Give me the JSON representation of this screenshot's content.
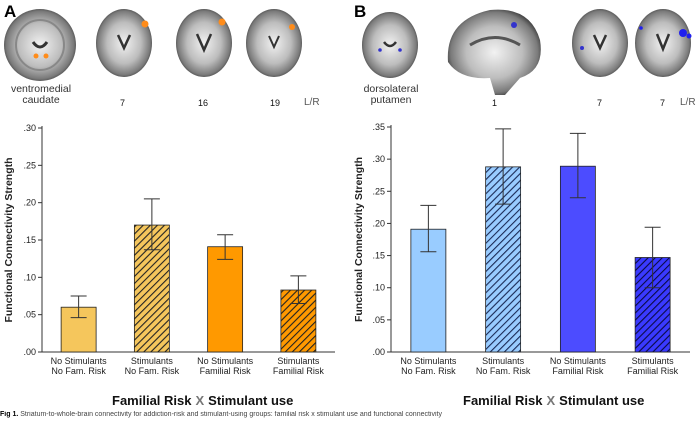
{
  "panels": [
    {
      "letter": "A",
      "region_label": [
        "ventromedial",
        "caudate"
      ],
      "slice_numbers": [
        "7",
        "16",
        "19"
      ],
      "lr_label": "L/R",
      "xaxis_title": {
        "part1": "Familial Risk",
        "x": "X",
        "part2": "Stimulant use"
      }
    },
    {
      "letter": "B",
      "region_label": [
        "dorsolateral",
        "putamen"
      ],
      "slice_numbers": [
        "1",
        "7",
        "7"
      ],
      "lr_label": "L/R",
      "xaxis_title": {
        "part1": "Familial Risk",
        "x": "X",
        "part2": "Stimulant use"
      }
    }
  ],
  "caption": {
    "fig": "Fig 1.",
    "text": "Striatum-to-whole-brain connectivity for addiction-risk and stimulant-using groups: familial risk x stimulant use and functional connectivity"
  },
  "chart_data": [
    {
      "type": "bar",
      "ylabel": "Functional Connectivity Strength",
      "ylim": [
        0,
        0.3
      ],
      "yticks": [
        0,
        0.05,
        0.1,
        0.15,
        0.2,
        0.25,
        0.3
      ],
      "ytick_labels": [
        ".00",
        ".05",
        ".10",
        ".15",
        ".20",
        ".25",
        ".30"
      ],
      "categories": [
        [
          "No Stimulants",
          "No Fam. Risk"
        ],
        [
          "Stimulants",
          "No Fam. Risk"
        ],
        [
          "No Stimulants",
          "Familial Risk"
        ],
        [
          "Stimulants",
          "Familial Risk"
        ]
      ],
      "values": [
        0.06,
        0.17,
        0.141,
        0.083
      ],
      "error_low": [
        0.046,
        0.137,
        0.124,
        0.065
      ],
      "error_high": [
        0.075,
        0.205,
        0.157,
        0.102
      ],
      "colors": [
        "#F5C65C",
        "#F5C65C",
        "#FF9900",
        "#FF9900"
      ],
      "hatched": [
        false,
        true,
        false,
        true
      ]
    },
    {
      "type": "bar",
      "ylabel": "Functional Connectivity Strength",
      "ylim": [
        0,
        0.35
      ],
      "yticks": [
        0,
        0.05,
        0.1,
        0.15,
        0.2,
        0.25,
        0.3,
        0.35
      ],
      "ytick_labels": [
        ".00",
        ".05",
        ".10",
        ".15",
        ".20",
        ".25",
        ".30",
        ".35"
      ],
      "categories": [
        [
          "No Stimulants",
          "No Fam. Risk"
        ],
        [
          "Stimulants",
          "No Fam. Risk"
        ],
        [
          "No Stimulants",
          "Familial Risk"
        ],
        [
          "Stimulants",
          "Familial Risk"
        ]
      ],
      "values": [
        0.191,
        0.288,
        0.289,
        0.147
      ],
      "error_low": [
        0.156,
        0.23,
        0.24,
        0.1
      ],
      "error_high": [
        0.228,
        0.347,
        0.34,
        0.194
      ],
      "colors": [
        "#99CCFF",
        "#99CCFF",
        "#4C4CFF",
        "#2323A8"
      ],
      "hatched": [
        false,
        true,
        false,
        true
      ]
    }
  ]
}
